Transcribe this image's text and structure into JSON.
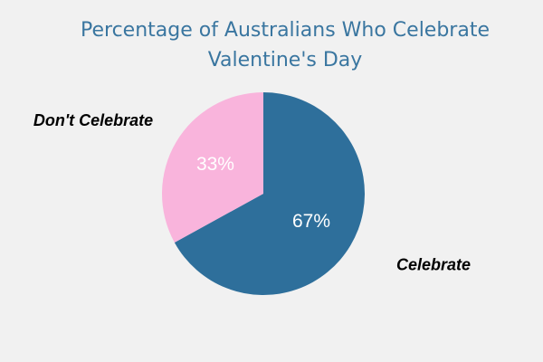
{
  "chart_data": {
    "type": "pie",
    "title": "Percentage of Australians Who Celebrate Valentine's Day",
    "categories": [
      "Celebrate",
      "Don't Celebrate"
    ],
    "values": [
      67,
      33
    ],
    "value_labels": [
      "67%",
      "33%"
    ],
    "colors": [
      "#2e6f9b",
      "#f9b4dc"
    ]
  }
}
